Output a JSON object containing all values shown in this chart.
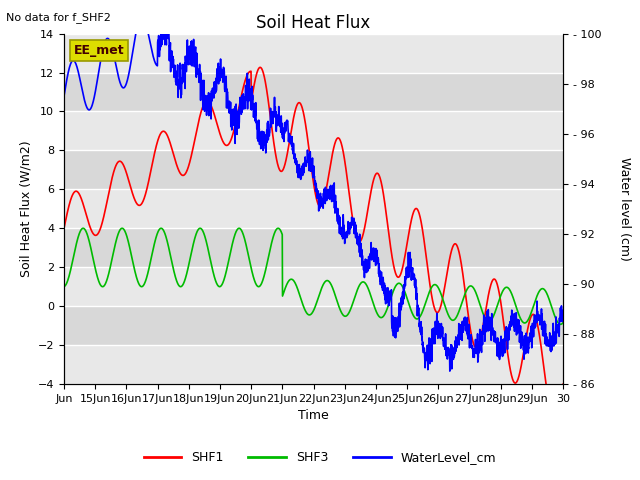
{
  "title": "Soil Heat Flux",
  "no_data_text": "No data for f_SHF2",
  "ylabel_left": "Soil Heat Flux (W/m2)",
  "ylabel_right": "Water level (cm)",
  "xlabel": "Time",
  "ylim_left": [
    -4,
    14
  ],
  "ylim_right": [
    86,
    100
  ],
  "background_color": "#ffffff",
  "plot_bg_even": "#e8e8e8",
  "plot_bg_odd": "#d8d8d8",
  "grid_color": "#ffffff",
  "x_start": 14,
  "x_end": 30,
  "xticks": [
    14,
    15,
    16,
    17,
    18,
    19,
    20,
    21,
    22,
    23,
    24,
    25,
    26,
    27,
    28,
    29,
    30
  ],
  "xtick_labels": [
    "Jun",
    "15Jun",
    "16Jun",
    "17Jun",
    "18Jun",
    "19Jun",
    "20Jun",
    "21Jun",
    "22Jun",
    "23Jun",
    "24Jun",
    "25Jun",
    "26Jun",
    "27Jun",
    "28Jun",
    "29Jun",
    "30"
  ],
  "yticks_left": [
    -4,
    -2,
    0,
    2,
    4,
    6,
    8,
    10,
    12,
    14
  ],
  "yticks_right": [
    86,
    88,
    90,
    92,
    94,
    96,
    98,
    100
  ],
  "legend_items": [
    "SHF1",
    "SHF3",
    "WaterLevel_cm"
  ],
  "legend_colors": [
    "#ff0000",
    "#00bb00",
    "#0000ff"
  ],
  "ee_met_box_facecolor": "#dddd00",
  "ee_met_box_edgecolor": "#999900",
  "ee_met_text": "EE_met",
  "line_width": 1.2,
  "title_fontsize": 12,
  "label_fontsize": 9,
  "tick_fontsize": 8
}
